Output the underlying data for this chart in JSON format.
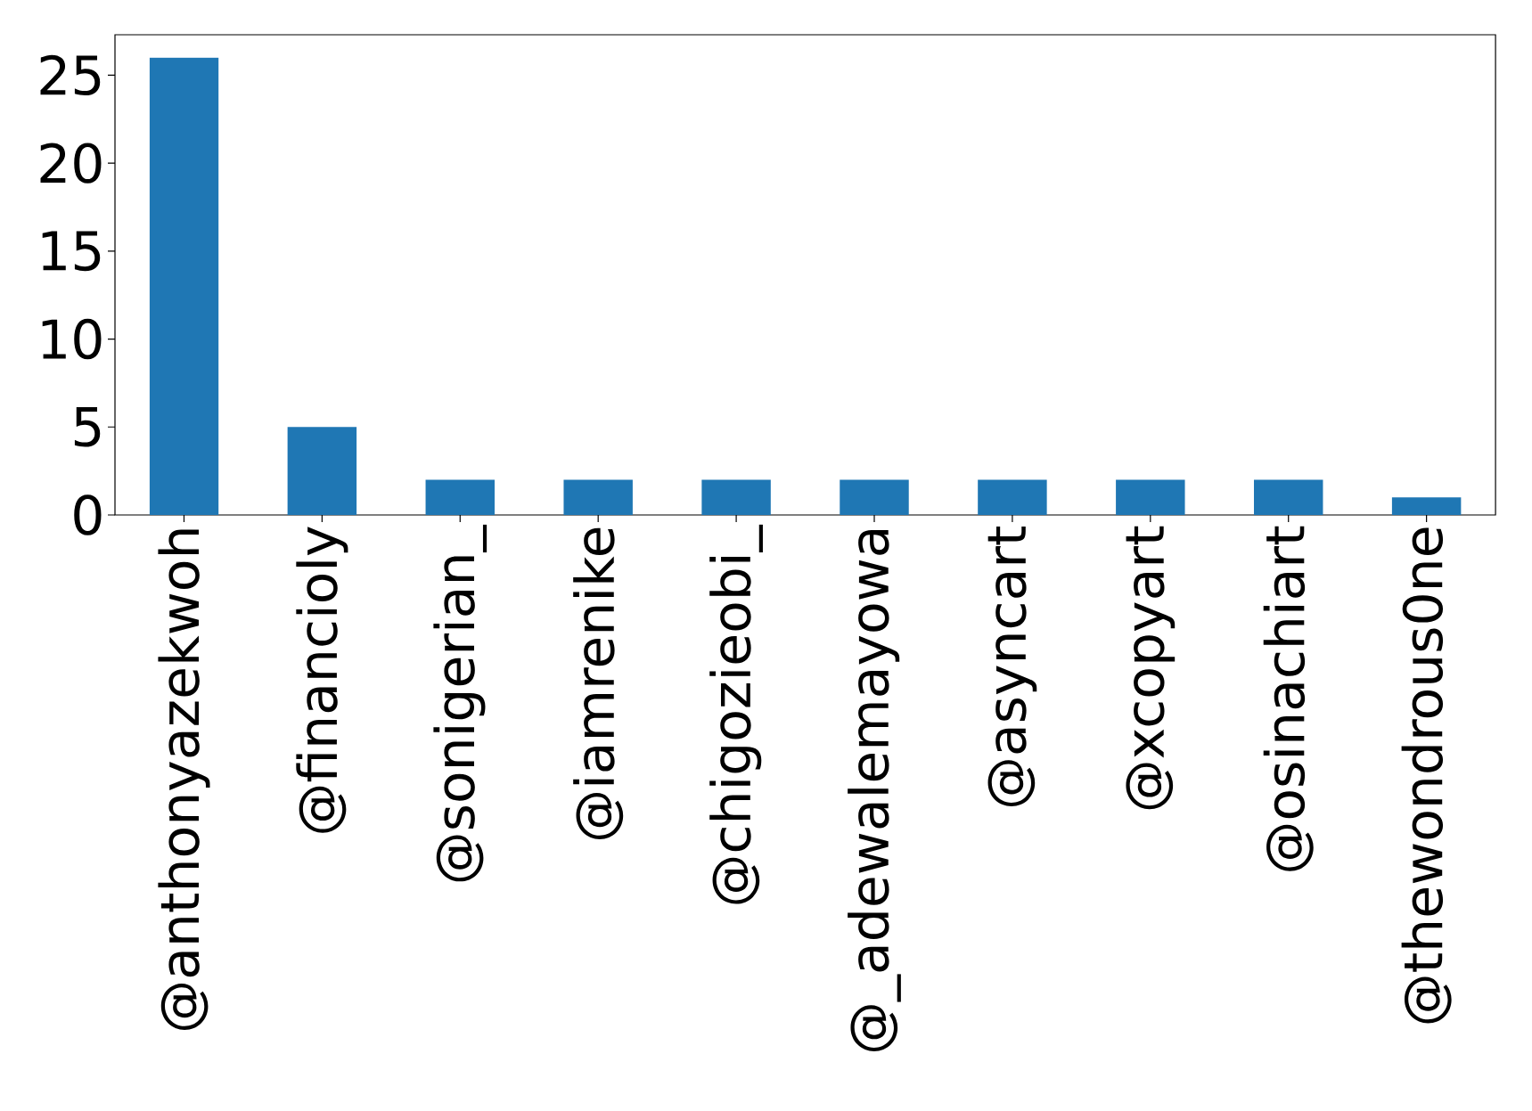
{
  "chart_data": {
    "type": "bar",
    "categories": [
      "@anthonyazekwoh",
      "@financioly",
      "@sonigerian_",
      "@iamrenike",
      "@chigozieobi_",
      "@_adewalemayowa",
      "@asyncart",
      "@xcopyart",
      "@osinachiart",
      "@thewondrous0ne"
    ],
    "values": [
      26,
      5,
      2,
      2,
      2,
      2,
      2,
      2,
      2,
      1
    ],
    "color": "#1f77b4",
    "ylim": [
      0,
      27.3
    ],
    "yticks": [
      0,
      5,
      10,
      15,
      20,
      25
    ]
  }
}
